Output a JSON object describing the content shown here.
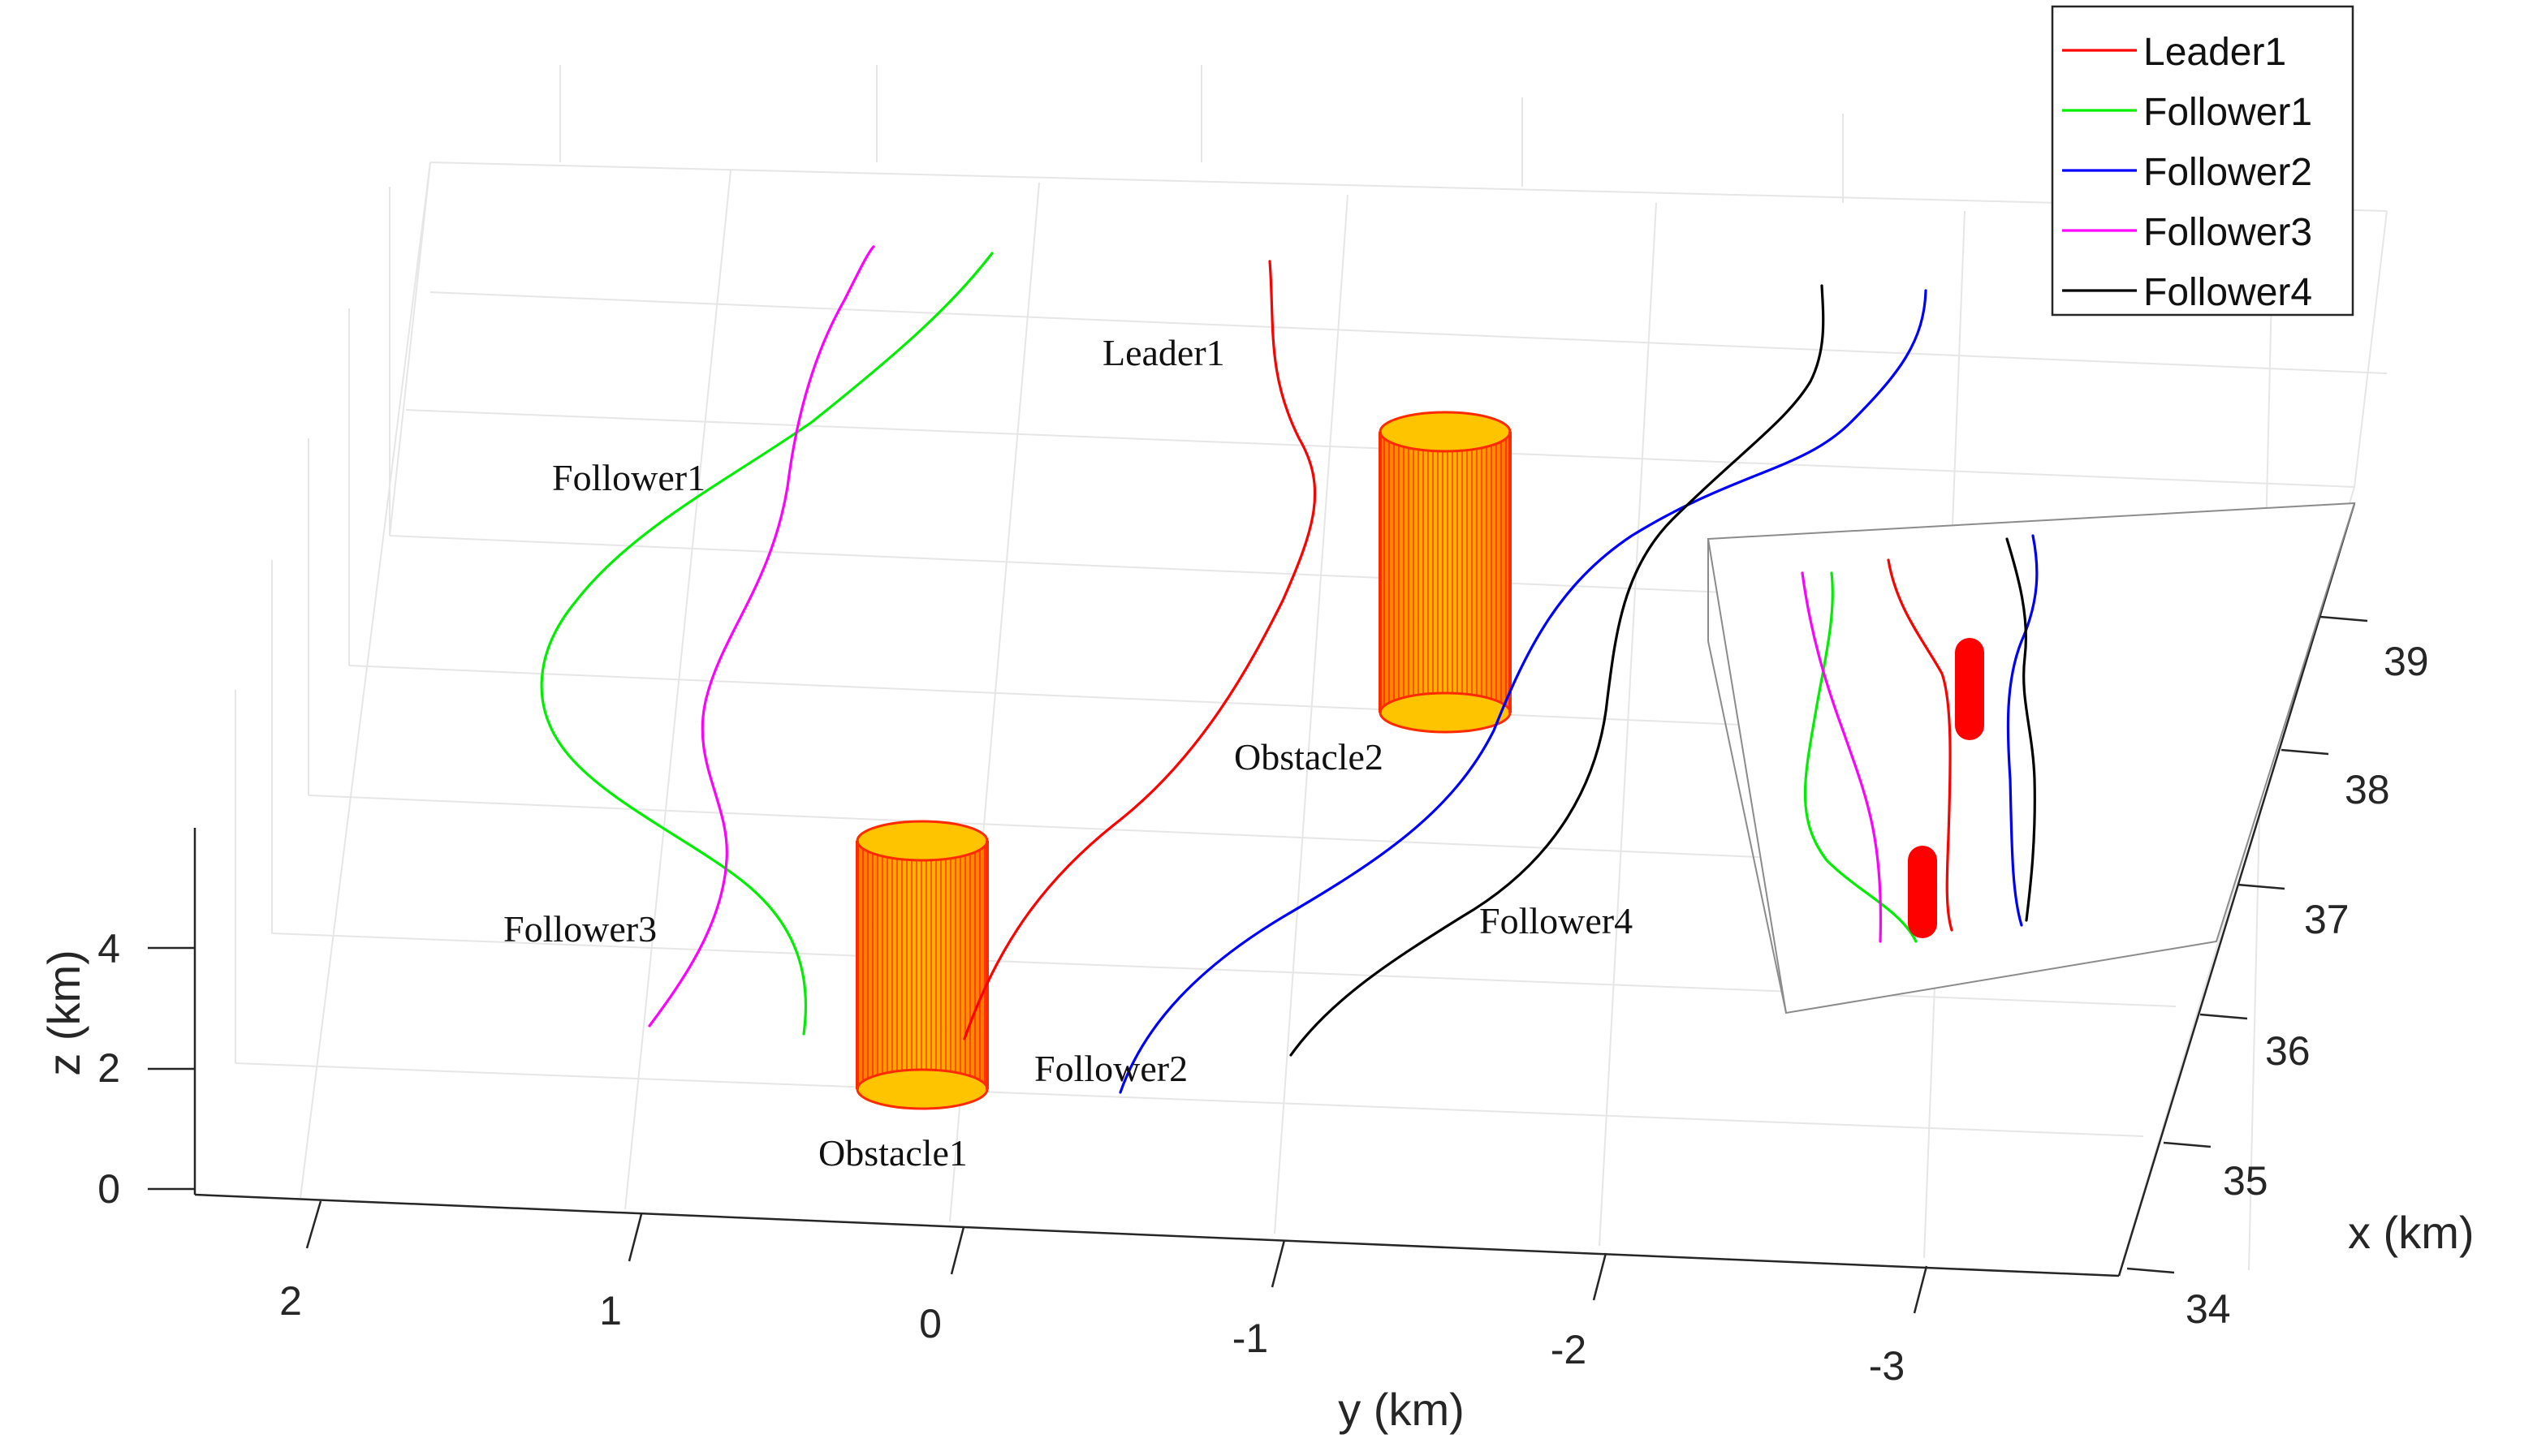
{
  "chart_data": {
    "type": "line3d",
    "title": "",
    "axes": {
      "x": {
        "label": "x (km)",
        "ticks": [
          "34",
          "35",
          "36",
          "37",
          "38",
          "39"
        ]
      },
      "y": {
        "label": "y (km)",
        "ticks": [
          "2",
          "1",
          "0",
          "-1",
          "-2",
          "-3"
        ]
      },
      "z": {
        "label": "z (km)",
        "ticks": [
          "0",
          "2",
          "4"
        ]
      }
    },
    "series": [
      {
        "name": "Leader1",
        "color": "#ff0000"
      },
      {
        "name": "Follower1",
        "color": "#00ee00"
      },
      {
        "name": "Follower2",
        "color": "#0000ff"
      },
      {
        "name": "Follower3",
        "color": "#ff00ff"
      },
      {
        "name": "Follower4",
        "color": "#000000"
      }
    ],
    "annotations": [
      "Leader1",
      "Follower1",
      "Follower2",
      "Follower3",
      "Follower4",
      "Obstacle1",
      "Obstacle2"
    ],
    "obstacles": [
      {
        "name": "Obstacle1",
        "color": "#ff8c00"
      },
      {
        "name": "Obstacle2",
        "color": "#ff8c00"
      }
    ],
    "legend": {
      "position": "top-right"
    },
    "grid": true,
    "inset": "top-view projection of trajectories and obstacles"
  }
}
